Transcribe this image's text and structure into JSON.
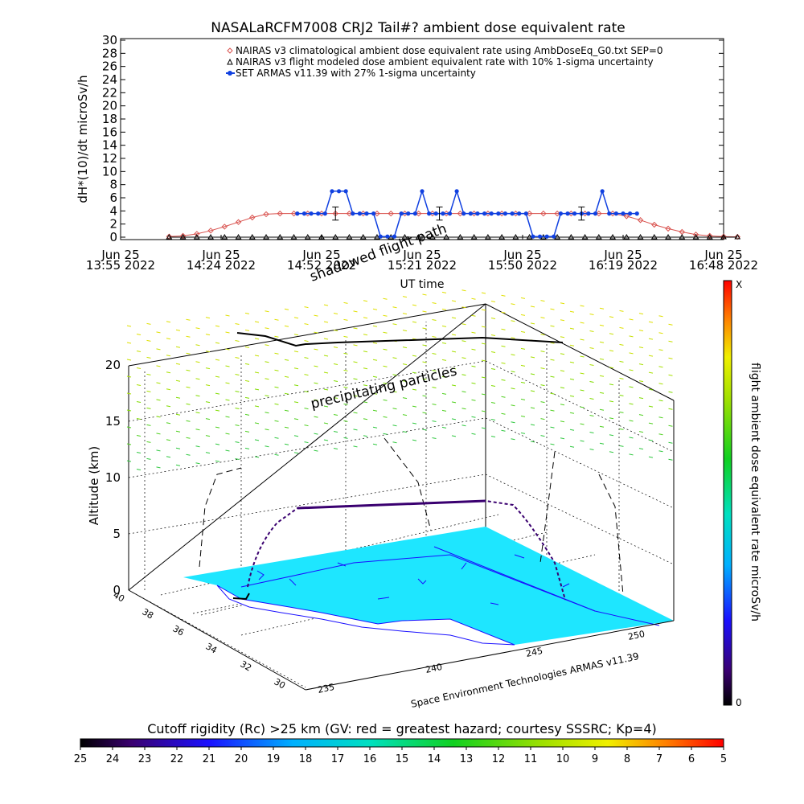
{
  "title": "NASALaRCFM7008  CRJ2 Tail#? ambient dose equivalent rate",
  "chart_data": [
    {
      "type": "line",
      "ylabel": "dH*(10)/dt microSv/h",
      "xlabel": "UT time",
      "ylim": [
        0,
        30
      ],
      "y_ticks": [
        "0",
        "2",
        "4",
        "6",
        "8",
        "10",
        "12",
        "14",
        "16",
        "18",
        "20",
        "22",
        "24",
        "26",
        "28",
        "30"
      ],
      "x_ticks": [
        {
          "top": "Jun 25",
          "bottom": "13:55 2022"
        },
        {
          "top": "Jun 25",
          "bottom": "14:24 2022"
        },
        {
          "top": "Jun 25",
          "bottom": "14:52 2022"
        },
        {
          "top": "Jun 25",
          "bottom": "15:21 2022"
        },
        {
          "top": "Jun 25",
          "bottom": "15:50 2022"
        },
        {
          "top": "Jun 25",
          "bottom": "16:19 2022"
        },
        {
          "top": "Jun 25",
          "bottom": "16:48 2022"
        }
      ],
      "legend_position": "top-right",
      "series": [
        {
          "name": "NAIRAS v3 climatological ambient dose equivalent rate using AmbDoseEq_G0.txt SEP=0",
          "marker": "diamond",
          "color": "#d9534f",
          "minutes": [
            14,
            18,
            22,
            26,
            30,
            34,
            38,
            42,
            46,
            50,
            54,
            58,
            62,
            66,
            70,
            74,
            78,
            82,
            86,
            90,
            94,
            98,
            102,
            106,
            110,
            114,
            118,
            122,
            126,
            130,
            134,
            138,
            142,
            146,
            150,
            154,
            158,
            162,
            166,
            170,
            174,
            178
          ],
          "values": [
            0.1,
            0.2,
            0.5,
            1.0,
            1.6,
            2.3,
            3.0,
            3.5,
            3.6,
            3.6,
            3.6,
            3.6,
            3.6,
            3.6,
            3.6,
            3.6,
            3.6,
            3.6,
            3.6,
            3.6,
            3.6,
            3.6,
            3.6,
            3.6,
            3.6,
            3.6,
            3.6,
            3.6,
            3.6,
            3.6,
            3.6,
            3.6,
            3.6,
            3.2,
            2.6,
            1.9,
            1.3,
            0.8,
            0.4,
            0.2,
            0.1,
            0.05
          ]
        },
        {
          "name": "NAIRAS v3 flight modeled dose ambient equivalent rate with 10% 1-sigma uncertainty",
          "marker": "triangle",
          "color": "#000000",
          "minutes": [
            14,
            18,
            22,
            26,
            30,
            34,
            38,
            42,
            46,
            50,
            54,
            58,
            62,
            66,
            70,
            74,
            78,
            82,
            86,
            90,
            94,
            98,
            102,
            106,
            110,
            114,
            118,
            122,
            126,
            130,
            134,
            138,
            142,
            146,
            150,
            154,
            158,
            162,
            166,
            170,
            174,
            178
          ],
          "values": [
            0,
            0,
            0,
            0,
            0,
            0,
            0,
            0,
            0,
            0,
            0,
            0,
            0,
            0,
            0,
            0,
            0,
            0,
            0,
            0,
            0,
            0,
            0,
            0,
            0,
            0,
            0,
            0,
            0,
            0,
            0,
            0,
            0,
            0,
            0,
            0,
            0,
            0,
            0,
            0,
            0,
            0
          ]
        },
        {
          "name": "SET ARMAS v11.39 with 27% 1-sigma uncertainty",
          "marker": "circle",
          "color": "#1040e0",
          "minutes": [
            51,
            53,
            55,
            57,
            59,
            61,
            63,
            65,
            67,
            69,
            71,
            73,
            75,
            77,
            79,
            81,
            83,
            85,
            87,
            89,
            91,
            93,
            95,
            97,
            99,
            101,
            103,
            105,
            107,
            109,
            111,
            113,
            115,
            117,
            119,
            121,
            123,
            125,
            127,
            129,
            131,
            133,
            135,
            137,
            139,
            141,
            143,
            145,
            147,
            149
          ],
          "values": [
            3.6,
            3.6,
            3.6,
            3.6,
            3.6,
            7.0,
            7.0,
            7.0,
            3.6,
            3.6,
            3.6,
            3.6,
            0.1,
            0.1,
            0.1,
            3.6,
            3.6,
            3.6,
            7.0,
            3.6,
            3.6,
            3.6,
            3.6,
            7.0,
            3.6,
            3.6,
            3.6,
            3.6,
            3.6,
            3.6,
            3.6,
            3.6,
            3.6,
            3.6,
            0.1,
            0.1,
            0.1,
            0.1,
            3.6,
            3.6,
            3.6,
            3.6,
            3.6,
            3.6,
            7.0,
            3.6,
            3.6,
            3.6,
            3.6,
            3.6
          ]
        }
      ],
      "error_bars": [
        {
          "minute": 62,
          "value": 3.6,
          "low": 2.6,
          "high": 4.6
        },
        {
          "minute": 92,
          "value": 3.6,
          "low": 2.6,
          "high": 4.6
        },
        {
          "minute": 133,
          "value": 3.6,
          "low": 2.6,
          "high": 4.6
        }
      ]
    },
    {
      "type": "scatter",
      "zlabel": "Altitude (km)",
      "z_ticks": [
        "0",
        "5",
        "10",
        "15",
        "20"
      ],
      "zlim": [
        0,
        20
      ],
      "lat_ticks": [
        "30",
        "32",
        "34",
        "36",
        "38",
        "40"
      ],
      "lon_ticks": [
        "235",
        "240",
        "245",
        "250"
      ],
      "annotations": [
        "shadowed flight path",
        "precipitating particles"
      ],
      "credit": "Space Environment Technologies ARMAS v11.39",
      "colorbar": {
        "label": "flight ambient dose equivalent rate microSv/h",
        "min_label": "0",
        "max_label": "X"
      }
    },
    {
      "type": "heatmap",
      "label": "Cutoff rigidity (Rc) >25 km (GV: red = greatest hazard; courtesy SSSRC; Kp=4)",
      "ticks": [
        "25",
        "24",
        "23",
        "22",
        "21",
        "20",
        "19",
        "18",
        "17",
        "16",
        "15",
        "14",
        "13",
        "12",
        "11",
        "10",
        "9",
        "8",
        "7",
        "6",
        "5"
      ]
    }
  ]
}
